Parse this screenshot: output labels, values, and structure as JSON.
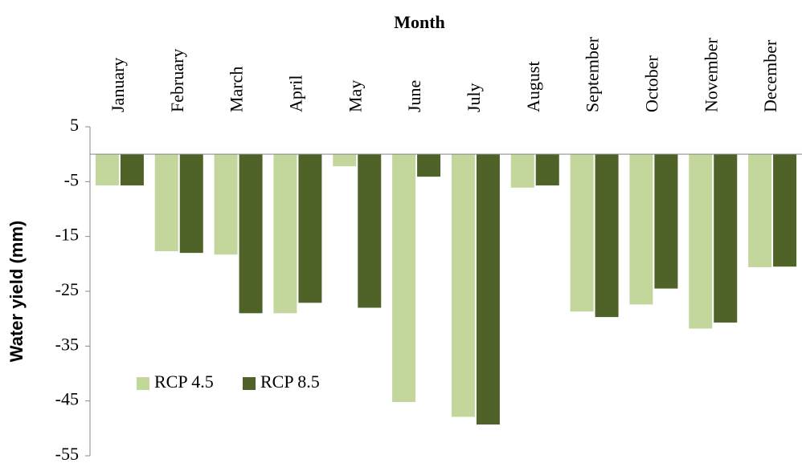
{
  "chart_data": {
    "type": "bar",
    "title": "Month",
    "y_label": "Water yield (mm)",
    "categories": [
      "January",
      "February",
      "March",
      "April",
      "May",
      "June",
      "July",
      "August",
      "September",
      "October",
      "November",
      "December"
    ],
    "series": [
      {
        "name": "RCP 4.5",
        "color": "#c3d69b",
        "values": [
          -5.7,
          -17.7,
          -18.3,
          -29.0,
          -2.2,
          -45.2,
          -47.9,
          -6.1,
          -28.7,
          -27.4,
          -31.8,
          -20.6
        ]
      },
      {
        "name": "RCP 8.5",
        "color": "#4f6228",
        "values": [
          -5.7,
          -18.0,
          -29.0,
          -27.1,
          -28.0,
          -4.1,
          -49.3,
          -5.7,
          -29.7,
          -24.5,
          -30.7,
          -20.5
        ]
      }
    ],
    "ylim": [
      -55,
      5
    ],
    "yticks": [
      5,
      -5,
      -15,
      -25,
      -35,
      -45,
      -55
    ],
    "legend": "lower-left"
  }
}
